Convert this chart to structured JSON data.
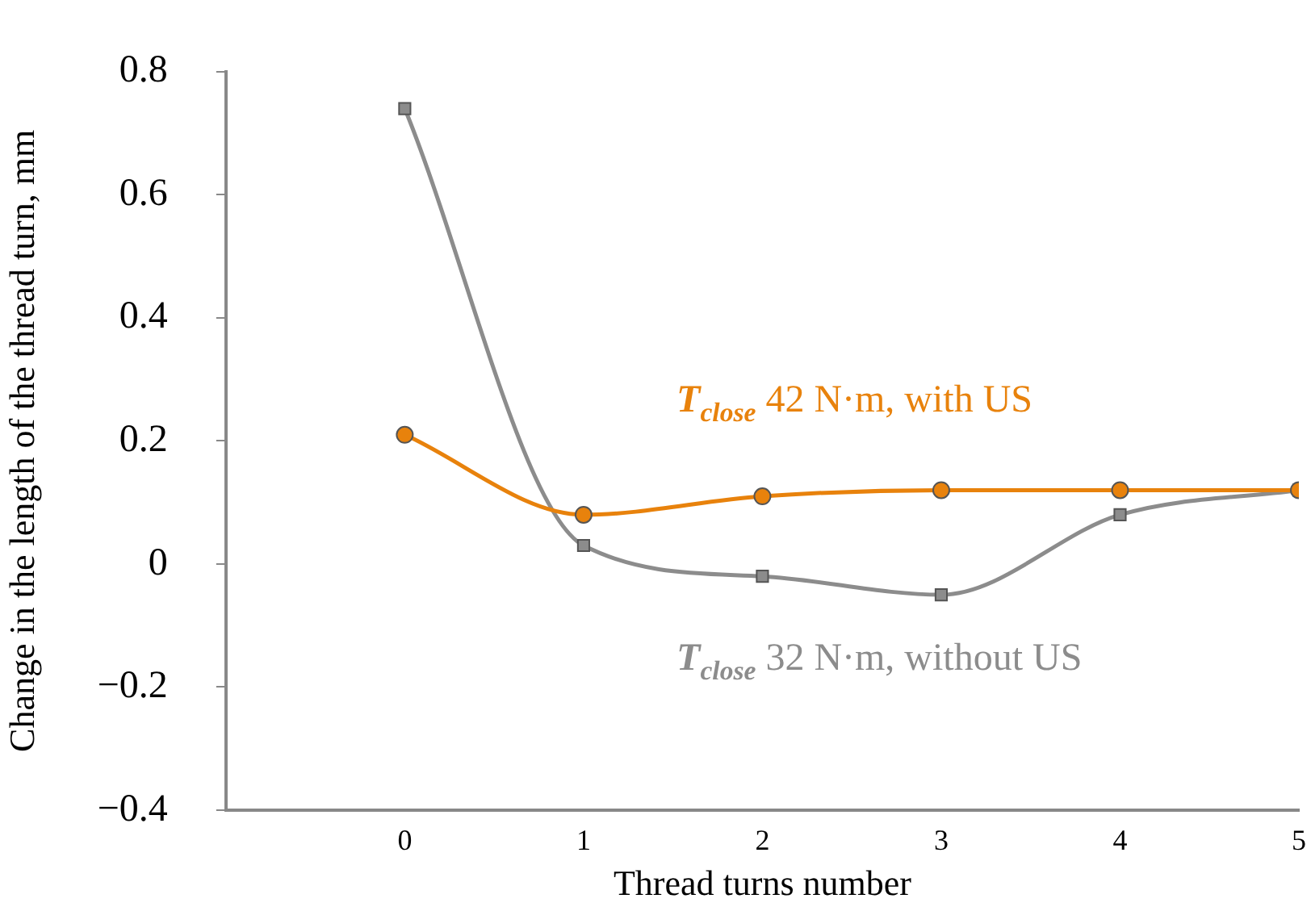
{
  "chart_data": {
    "type": "line",
    "xlabel": "Thread turns number",
    "ylabel": "Change in the length of the thread turn, mm",
    "x": [
      0,
      1,
      2,
      3,
      4,
      5
    ],
    "series": [
      {
        "name": "T$_{close}$ 42 N·m, with US",
        "color": "#e8820c",
        "marker": "circle",
        "values": [
          0.21,
          0.08,
          0.11,
          0.12,
          0.12,
          0.12
        ]
      },
      {
        "name": "T$_{close}$ 32 N·m, without US",
        "color": "#8c8c8c",
        "marker": "square",
        "values": [
          0.74,
          0.03,
          -0.02,
          -0.05,
          0.08,
          0.12
        ]
      }
    ],
    "xlim": [
      -1,
      5
    ],
    "xticks": [
      0,
      1,
      2,
      3,
      4,
      5
    ],
    "ylim": [
      -0.4,
      0.8
    ],
    "yticks": [
      -0.4,
      -0.2,
      0,
      0.2,
      0.4,
      0.6,
      0.8
    ],
    "grid": false,
    "legend": false
  }
}
